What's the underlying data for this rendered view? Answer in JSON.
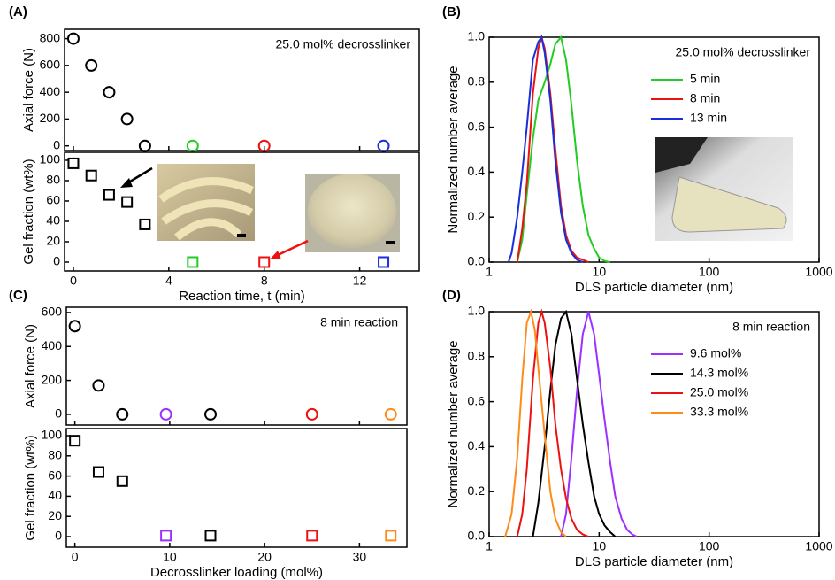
{
  "chart_data": [
    {
      "type": "scatter",
      "panel_label": "(A)",
      "annotation": "25.0 mol% decrosslinker",
      "ylabel": "Axial force (N)",
      "marker": "circle",
      "x": [
        0,
        0.75,
        1.5,
        2.25,
        3,
        5,
        8,
        13
      ],
      "values": [
        800,
        600,
        400,
        200,
        0,
        0,
        0,
        0
      ],
      "colors": [
        "#000000",
        "#000000",
        "#000000",
        "#000000",
        "#000000",
        "#22cc22",
        "#ee1111",
        "#1a2fd9"
      ],
      "xlim": [
        -0.37,
        14.5
      ],
      "xticks": [
        0,
        4,
        8,
        12
      ],
      "ylim": [
        -35,
        870
      ],
      "yticks": [
        0,
        200,
        400,
        600,
        800
      ]
    },
    {
      "type": "scatter",
      "ylabel": "Gel fraction (wt%)",
      "xlabel": "Reaction time, t (min)",
      "marker": "square",
      "x": [
        0,
        0.75,
        1.5,
        2.25,
        3,
        5,
        8,
        13
      ],
      "values": [
        97,
        85,
        66,
        59,
        37,
        0,
        0,
        0
      ],
      "colors": [
        "#000000",
        "#000000",
        "#000000",
        "#000000",
        "#000000",
        "#22cc22",
        "#ee1111",
        "#1a2fd9"
      ],
      "xlim": [
        -0.37,
        14.5
      ],
      "xticks": [
        0,
        4,
        8,
        12
      ],
      "ylim": [
        -8.7,
        107.8
      ],
      "yticks": [
        0,
        20,
        40,
        60,
        80,
        100
      ]
    },
    {
      "type": "line",
      "panel_label": "(B)",
      "annotation": "25.0 mol% decrosslinker",
      "ylabel": "Normalized number average",
      "xlabel": "DLS particle diameter (nm)",
      "xlog": true,
      "legend": "upper right",
      "xlim": [
        1,
        1000
      ],
      "xticks": [
        1,
        10,
        100,
        1000
      ],
      "ylim": [
        0,
        1
      ],
      "yticks": [
        {
          "value": 0,
          "label": "0.0"
        },
        0.2,
        0.4,
        0.6,
        0.8,
        {
          "value": 1,
          "label": "1.0"
        }
      ],
      "series": [
        {
          "name": "5 min",
          "color": "#22cc22",
          "x": [
            1.8,
            2.0,
            2.2,
            2.5,
            2.8,
            3.2,
            3.6,
            4.0,
            4.5,
            5.0,
            5.6,
            6.3,
            7.1,
            8.0,
            9.0,
            10,
            11.2,
            12.6
          ],
          "values": [
            0,
            0.1,
            0.3,
            0.55,
            0.72,
            0.8,
            0.88,
            0.97,
            1.0,
            0.9,
            0.7,
            0.45,
            0.25,
            0.12,
            0.06,
            0.02,
            0.005,
            0
          ]
        },
        {
          "name": "8 min",
          "color": "#ee1111",
          "x": [
            1.8,
            2.0,
            2.2,
            2.5,
            2.8,
            3.0,
            3.2,
            3.6,
            4.0,
            4.5,
            5.0,
            5.6,
            6.3,
            7.1,
            8.0
          ],
          "values": [
            0,
            0.15,
            0.35,
            0.75,
            0.95,
            1.0,
            0.95,
            0.75,
            0.5,
            0.25,
            0.12,
            0.05,
            0.02,
            0.01,
            0
          ]
        },
        {
          "name": "13 min",
          "color": "#1a2fd9",
          "x": [
            1.5,
            1.6,
            1.8,
            2.0,
            2.2,
            2.5,
            2.8,
            3.0,
            3.2,
            3.6,
            4.0,
            4.5,
            5.0,
            5.6,
            6.3,
            7.1
          ],
          "values": [
            0,
            0.04,
            0.2,
            0.4,
            0.6,
            0.9,
            0.98,
            1.0,
            0.93,
            0.72,
            0.45,
            0.22,
            0.1,
            0.04,
            0.01,
            0
          ]
        }
      ]
    },
    {
      "type": "scatter",
      "panel_label": "(C)",
      "annotation": "8 min reaction",
      "ylabel": "Axial force (N)",
      "marker": "circle",
      "x": [
        0,
        2.5,
        5,
        9.6,
        14.3,
        25,
        33.3
      ],
      "values": [
        520,
        170,
        0,
        0,
        0,
        0,
        0
      ],
      "colors": [
        "#000000",
        "#000000",
        "#000000",
        "#9b30ff",
        "#000000",
        "#ee1111",
        "#ff8c1a"
      ],
      "xlim": [
        -0.9,
        35
      ],
      "xticks": [
        0,
        10,
        20,
        30
      ],
      "ylim": [
        -63,
        631
      ],
      "yticks": [
        0,
        200,
        400,
        600
      ]
    },
    {
      "type": "scatter",
      "ylabel": "Gel fraction (wt%)",
      "xlabel": "Decrosslinker loading (mol%)",
      "marker": "square",
      "x": [
        0,
        2.5,
        5,
        9.6,
        14.3,
        25,
        33.3
      ],
      "values": [
        95,
        64,
        55,
        1,
        1,
        1,
        1
      ],
      "colors": [
        "#000000",
        "#000000",
        "#000000",
        "#9b30ff",
        "#000000",
        "#ee1111",
        "#ff8c1a"
      ],
      "xlim": [
        -0.9,
        35
      ],
      "xticks": [
        0,
        10,
        20,
        30
      ],
      "ylim": [
        -10.5,
        107
      ],
      "yticks": [
        0,
        20,
        40,
        60,
        80,
        100
      ]
    },
    {
      "type": "line",
      "panel_label": "(D)",
      "annotation": "8 min reaction",
      "ylabel": "Normalized number average",
      "xlabel": "DLS particle diameter (nm)",
      "xlog": true,
      "legend": "upper right",
      "xlim": [
        1,
        1000
      ],
      "xticks": [
        1,
        10,
        100,
        1000
      ],
      "ylim": [
        0,
        1
      ],
      "yticks": [
        {
          "value": 0,
          "label": "0.0"
        },
        0.2,
        0.4,
        0.6,
        0.8,
        {
          "value": 1,
          "label": "1.0"
        }
      ],
      "series": [
        {
          "name": "9.6 mol%",
          "color": "#9b30ff",
          "x": [
            4.5,
            5.0,
            5.6,
            6.3,
            7.1,
            8.0,
            9,
            10,
            11.2,
            12.6,
            14,
            16,
            18,
            20,
            22
          ],
          "values": [
            0,
            0.1,
            0.35,
            0.65,
            0.9,
            1.0,
            0.9,
            0.72,
            0.52,
            0.33,
            0.18,
            0.08,
            0.03,
            0.01,
            0
          ]
        },
        {
          "name": "14.3 mol%",
          "color": "#000000",
          "x": [
            2.5,
            2.8,
            3.2,
            3.6,
            4.0,
            4.5,
            5.0,
            5.6,
            6.3,
            7.1,
            8,
            9,
            10,
            11.2,
            12.6,
            14
          ],
          "values": [
            0,
            0.15,
            0.4,
            0.65,
            0.85,
            0.97,
            1.0,
            0.9,
            0.7,
            0.5,
            0.33,
            0.18,
            0.1,
            0.05,
            0.02,
            0
          ]
        },
        {
          "name": "25.0 mol%",
          "color": "#ee1111",
          "x": [
            1.8,
            2.0,
            2.2,
            2.5,
            2.8,
            3.0,
            3.2,
            3.6,
            4.0,
            4.5,
            5.0,
            5.6,
            6.3,
            7.1,
            8
          ],
          "values": [
            0,
            0.1,
            0.3,
            0.7,
            0.95,
            1.0,
            0.95,
            0.75,
            0.5,
            0.3,
            0.17,
            0.08,
            0.03,
            0.01,
            0
          ]
        },
        {
          "name": "33.3 mol%",
          "color": "#ff8c1a",
          "x": [
            1.4,
            1.6,
            1.8,
            2.0,
            2.2,
            2.4,
            2.6,
            2.8,
            3.2,
            3.6,
            4.0,
            4.5,
            5.0
          ],
          "values": [
            0,
            0.1,
            0.35,
            0.7,
            0.95,
            1.0,
            0.92,
            0.75,
            0.45,
            0.2,
            0.08,
            0.02,
            0
          ]
        }
      ]
    }
  ]
}
